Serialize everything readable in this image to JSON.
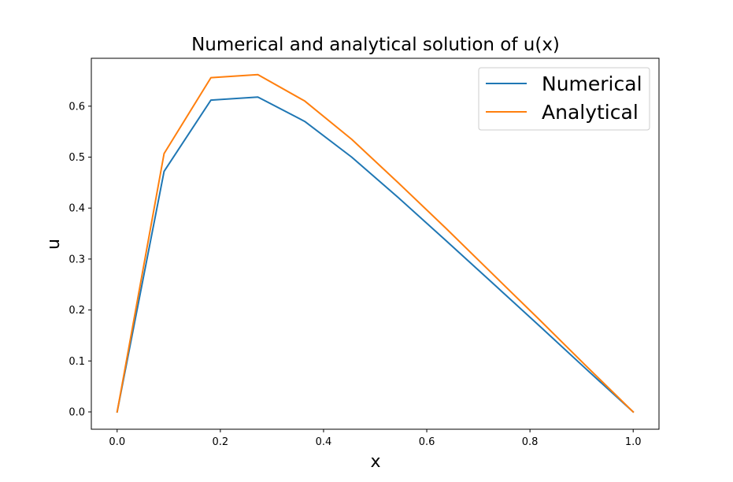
{
  "chart_data": {
    "type": "line",
    "title": "Numerical and analytical solution of u(x)",
    "xlabel": "x",
    "ylabel": "u",
    "xlim": [
      -0.05,
      1.05
    ],
    "ylim": [
      -0.034,
      0.694
    ],
    "xticks": [
      0.0,
      0.2,
      0.4,
      0.6,
      0.8,
      1.0
    ],
    "xtick_labels": [
      "0.0",
      "0.2",
      "0.4",
      "0.6",
      "0.8",
      "1.0"
    ],
    "yticks": [
      0.0,
      0.1,
      0.2,
      0.3,
      0.4,
      0.5,
      0.6
    ],
    "ytick_labels": [
      "0.0",
      "0.1",
      "0.2",
      "0.3",
      "0.4",
      "0.5",
      "0.6"
    ],
    "grid": false,
    "legend_position": "top-right",
    "x": [
      0.0,
      0.0909,
      0.1818,
      0.2727,
      0.3636,
      0.4545,
      0.5455,
      0.6364,
      0.7273,
      0.8182,
      0.9091,
      1.0
    ],
    "series": [
      {
        "name": "Numerical",
        "color": "#1f77b4",
        "values": [
          0.0,
          0.472,
          0.612,
          0.618,
          0.57,
          0.5,
          0.42,
          0.337,
          0.253,
          0.169,
          0.084,
          0.0
        ]
      },
      {
        "name": "Analytical",
        "color": "#ff7f0e",
        "values": [
          0.0,
          0.507,
          0.656,
          0.662,
          0.61,
          0.535,
          0.449,
          0.361,
          0.271,
          0.181,
          0.09,
          0.0
        ]
      }
    ]
  }
}
